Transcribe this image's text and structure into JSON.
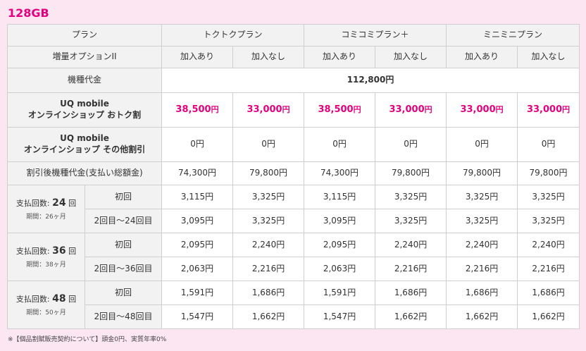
{
  "title": "128GB",
  "header": {
    "plan_label": "プラン",
    "plans": [
      "トクトクプラン",
      "コミコミプラン＋",
      "ミニミニプラン"
    ],
    "option_label": "増量オプションII",
    "options": [
      "加入あり",
      "加入なし",
      "加入あり",
      "加入なし",
      "加入あり",
      "加入なし"
    ]
  },
  "device_price": {
    "label": "機種代金",
    "value": "112,800円"
  },
  "otoku": {
    "label_line1": "UQ mobile",
    "label_line2": "オンラインショップ おトク割",
    "values": [
      "38,500",
      "33,000",
      "38,500",
      "33,000",
      "33,000",
      "33,000"
    ],
    "unit": "円"
  },
  "other_discount": {
    "label_line1": "UQ mobile",
    "label_line2": "オンラインショップ その他割引",
    "values": [
      "0円",
      "0円",
      "0円",
      "0円",
      "0円",
      "0円"
    ]
  },
  "after_discount": {
    "label": "割引後機種代金(支払い総額金)",
    "values": [
      "74,300円",
      "79,800円",
      "74,300円",
      "79,800円",
      "79,800円",
      "79,800円"
    ]
  },
  "installments": [
    {
      "count_prefix": "支払回数: ",
      "count": "24",
      "count_suffix": " 回",
      "period": "期間：26ヶ月",
      "first_label": "初回",
      "first_values": [
        "3,115円",
        "3,325円",
        "3,115円",
        "3,325円",
        "3,325円",
        "3,325円"
      ],
      "rest_label": "2回目～24回目",
      "rest_values": [
        "3,095円",
        "3,325円",
        "3,095円",
        "3,325円",
        "3,325円",
        "3,325円"
      ]
    },
    {
      "count_prefix": "支払回数: ",
      "count": "36",
      "count_suffix": " 回",
      "period": "期間：38ヶ月",
      "first_label": "初回",
      "first_values": [
        "2,095円",
        "2,240円",
        "2,095円",
        "2,240円",
        "2,240円",
        "2,240円"
      ],
      "rest_label": "2回目～36回目",
      "rest_values": [
        "2,063円",
        "2,216円",
        "2,063円",
        "2,216円",
        "2,216円",
        "2,216円"
      ]
    },
    {
      "count_prefix": "支払回数: ",
      "count": "48",
      "count_suffix": " 回",
      "period": "期間：50ヶ月",
      "first_label": "初回",
      "first_values": [
        "1,591円",
        "1,686円",
        "1,591円",
        "1,686円",
        "1,686円",
        "1,686円"
      ],
      "rest_label": "2回目～48回目",
      "rest_values": [
        "1,547円",
        "1,662円",
        "1,547円",
        "1,662円",
        "1,662円",
        "1,662円"
      ]
    }
  ],
  "footnote": "※【個品割賦販売契約について】頭金0円、実質年率0%"
}
